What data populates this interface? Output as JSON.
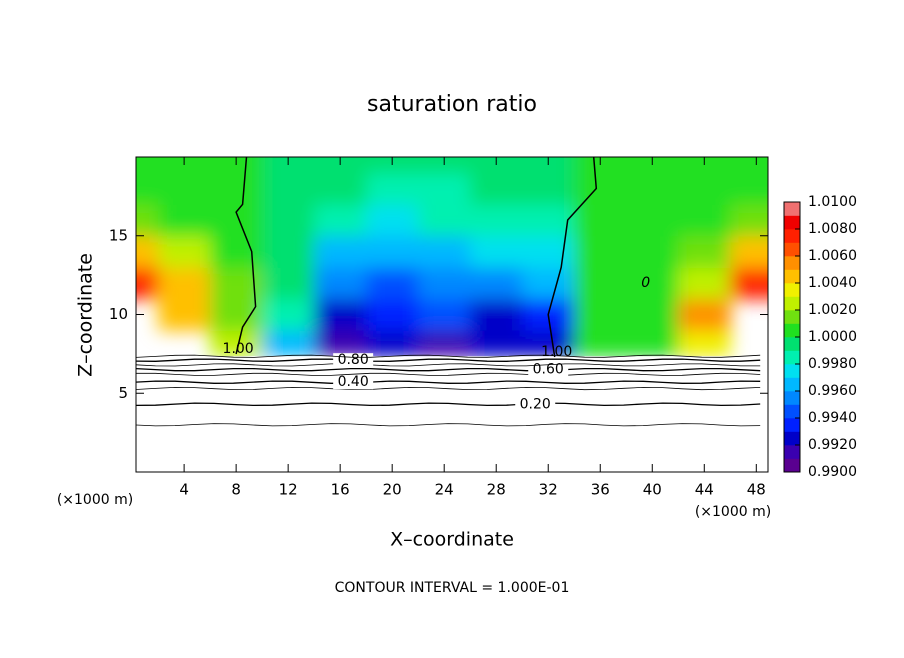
{
  "chart_data": {
    "type": "contour",
    "title": "saturation ratio",
    "xlabel": "X–coordinate",
    "ylabel": "Z–coordinate",
    "x_unit_labels": [
      "(×1000 m)",
      "(×1000 m)"
    ],
    "footnote": "CONTOUR INTERVAL = 1.000E-01",
    "xlim": [
      0.3,
      48.9
    ],
    "ylim": [
      0,
      20
    ],
    "xticks": [
      4,
      8,
      12,
      16,
      20,
      24,
      28,
      32,
      36,
      40,
      44,
      48
    ],
    "yticks": [
      5,
      10,
      15
    ],
    "field": {
      "x": [
        0,
        4,
        8,
        12,
        16,
        20,
        24,
        28,
        32,
        36,
        40,
        44,
        48
      ],
      "z": [
        8,
        10,
        12,
        14,
        16,
        18,
        20
      ],
      "values": [
        [
          null,
          null,
          1.002,
          0.996,
          0.991,
          0.992,
          0.991,
          0.992,
          0.992,
          1.0,
          1.0,
          1.003,
          null
        ],
        [
          null,
          1.004,
          1.001,
          0.998,
          0.992,
          0.993,
          0.994,
          0.992,
          0.993,
          1.0,
          1.0,
          1.005,
          null
        ],
        [
          1.007,
          1.004,
          1.001,
          0.999,
          0.995,
          0.994,
          0.995,
          0.995,
          0.996,
          1.0,
          1.0,
          1.002,
          1.007
        ],
        [
          1.004,
          1.002,
          1.0,
          0.999,
          0.996,
          0.996,
          0.996,
          0.997,
          0.997,
          1.0,
          1.0,
          1.001,
          1.004
        ],
        [
          1.001,
          1.0,
          1.0,
          0.999,
          0.998,
          0.997,
          0.998,
          0.998,
          0.998,
          1.0,
          1.0,
          1.0,
          1.001
        ],
        [
          1.0,
          1.0,
          1.0,
          0.999,
          0.999,
          0.998,
          0.998,
          0.999,
          0.999,
          1.0,
          1.0,
          1.0,
          1.0
        ],
        [
          1.0,
          1.0,
          1.0,
          0.999,
          0.999,
          0.999,
          0.999,
          0.999,
          0.999,
          1.0,
          1.0,
          1.0,
          1.0
        ]
      ]
    },
    "colorbar": {
      "levels": [
        0.99,
        0.991,
        0.992,
        0.993,
        0.994,
        0.995,
        0.996,
        0.997,
        0.998,
        0.999,
        1.0,
        1.001,
        1.002,
        1.003,
        1.004,
        1.005,
        1.006,
        1.007,
        1.008,
        1.009,
        1.01
      ],
      "colors": [
        "#5a0090",
        "#3a00b0",
        "#0000c8",
        "#0020ff",
        "#0050ff",
        "#0088ff",
        "#00b8ff",
        "#00e0f0",
        "#00f0b0",
        "#00e070",
        "#20e020",
        "#70e010",
        "#c0f000",
        "#f0f000",
        "#ffc000",
        "#ff9000",
        "#ff5000",
        "#ff2000",
        "#f00000",
        "#f07070"
      ],
      "ticks": [
        {
          "value": 0.99,
          "label": "0.9900"
        },
        {
          "value": 0.992,
          "label": "0.9920"
        },
        {
          "value": 0.994,
          "label": "0.9940"
        },
        {
          "value": 0.996,
          "label": "0.9960"
        },
        {
          "value": 0.998,
          "label": "0.9980"
        },
        {
          "value": 1.0,
          "label": "1.0000"
        },
        {
          "value": 1.002,
          "label": "1.0020"
        },
        {
          "value": 1.004,
          "label": "1.0040"
        },
        {
          "value": 1.006,
          "label": "1.0060"
        },
        {
          "value": 1.008,
          "label": "1.0080"
        },
        {
          "value": 1.01,
          "label": "1.0100"
        }
      ]
    },
    "contours": [
      {
        "level": 0.1,
        "z": 3.0
      },
      {
        "level": 0.2,
        "label": "0.20",
        "z": 4.3
      },
      {
        "level": 0.3,
        "z": 5.3
      },
      {
        "level": 0.4,
        "label": "0.40",
        "z": 5.7
      },
      {
        "level": 0.5,
        "z": 6.2
      },
      {
        "level": 0.6,
        "label": "0.60",
        "z": 6.5
      },
      {
        "level": 0.7,
        "z": 6.8
      },
      {
        "level": 0.8,
        "label": "0.80",
        "z": 7.1
      },
      {
        "level": 0.9,
        "z": 7.35
      }
    ],
    "ratio_contours": [
      {
        "label": "1.00",
        "x": [
          8.8,
          8.5,
          8.0,
          9.2,
          9.5,
          8.5,
          8.0
        ],
        "z": [
          20,
          17,
          16.5,
          14,
          10.5,
          9.2,
          7.5
        ]
      },
      {
        "label": "1.00",
        "x": [
          35.5,
          35.7,
          33.5,
          33.0,
          32.0,
          32.5
        ],
        "z": [
          20,
          18,
          16,
          13,
          10,
          7.3
        ]
      }
    ],
    "annotations": [
      {
        "text": "0"
      }
    ]
  }
}
